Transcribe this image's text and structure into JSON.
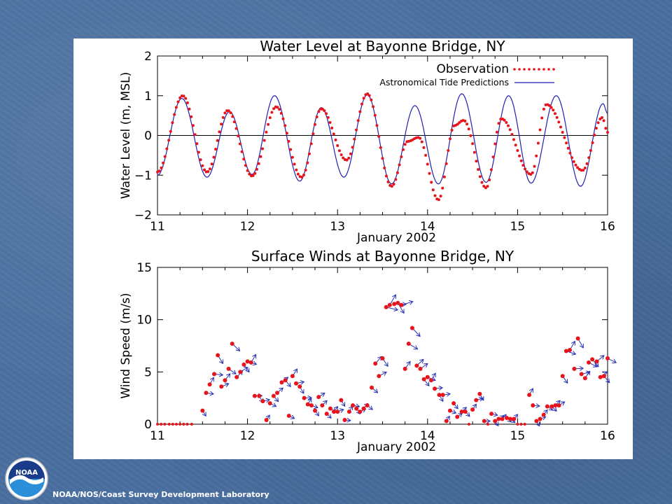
{
  "footer": {
    "credit": "NOAA/NOS/Coast Survey Development Laboratory",
    "logo_text": "NOAA"
  },
  "colors": {
    "observation": "#e8141c",
    "prediction": "#1f1fb4",
    "wind_arrow": "#2530b8",
    "background": "#4a6fa0"
  },
  "chart_data": [
    {
      "type": "line",
      "title": "Water Level at Bayonne Bridge, NY",
      "xlabel": "January 2002",
      "ylabel": "Water Level (m, MSL)",
      "xlim": [
        11,
        16
      ],
      "ylim": [
        -2,
        2
      ],
      "xticks": [
        "11",
        "12",
        "13",
        "14",
        "15",
        "16"
      ],
      "yticks": [
        "2",
        "1",
        "0",
        "−1",
        "−2"
      ],
      "zero_line": true,
      "legend": [
        {
          "label": "Observation",
          "style": "red dots",
          "color": "#e8141c"
        },
        {
          "label": "Astronomical Tide Predictions",
          "style": "blue line",
          "color": "#1f1fb4"
        }
      ],
      "series": [
        {
          "name": "Observation",
          "x": [
            11.0,
            11.28,
            11.55,
            11.78,
            12.05,
            12.32,
            12.6,
            12.82,
            13.1,
            13.33,
            13.6,
            13.78,
            13.9,
            14.12,
            14.3,
            14.4,
            14.65,
            14.82,
            15.15,
            15.32,
            15.72,
            15.94,
            16.0
          ],
          "y": [
            -0.92,
            1.0,
            -0.92,
            0.63,
            -1.02,
            0.72,
            -1.05,
            0.67,
            -0.62,
            1.05,
            -1.28,
            -0.15,
            -0.05,
            -1.62,
            0.25,
            0.38,
            -1.32,
            0.42,
            -0.98,
            0.78,
            -0.88,
            0.45,
            0.08
          ]
        },
        {
          "name": "Astronomical Tide Predictions",
          "x": [
            11.0,
            11.27,
            11.55,
            11.8,
            12.05,
            12.3,
            12.58,
            12.82,
            13.07,
            13.33,
            13.6,
            13.86,
            14.12,
            14.38,
            14.65,
            14.9,
            15.15,
            15.43,
            15.7,
            15.95,
            16.0
          ],
          "y": [
            -1.0,
            0.93,
            -1.05,
            0.6,
            -0.98,
            1.0,
            -1.15,
            0.7,
            -1.05,
            1.02,
            -1.22,
            0.75,
            -1.22,
            1.05,
            -1.18,
            1.0,
            -1.2,
            1.0,
            -1.28,
            0.8,
            0.55
          ]
        }
      ]
    },
    {
      "type": "scatter",
      "title": "Surface Winds at Bayonne Bridge, NY",
      "xlabel": "January 2002",
      "ylabel": "Wind Speed (m/s)",
      "xlim": [
        11,
        16
      ],
      "ylim": [
        0,
        15
      ],
      "xticks": [
        "11",
        "12",
        "13",
        "14",
        "15",
        "16"
      ],
      "yticks": [
        "15",
        "10",
        "5",
        "0"
      ],
      "series": [
        {
          "name": "Wind Speed",
          "x": [
            11.0,
            11.04,
            11.08,
            11.13,
            11.17,
            11.21,
            11.25,
            11.29,
            11.33,
            11.38,
            11.5,
            11.54,
            11.58,
            11.63,
            11.67,
            11.71,
            11.75,
            11.79,
            11.83,
            11.88,
            11.92,
            11.96,
            12.0,
            12.04,
            12.08,
            12.13,
            12.17,
            12.21,
            12.25,
            12.29,
            12.33,
            12.38,
            12.42,
            12.46,
            12.5,
            12.54,
            12.58,
            12.63,
            12.67,
            12.71,
            12.75,
            12.79,
            12.83,
            12.88,
            12.92,
            12.96,
            13.0,
            13.04,
            13.08,
            13.13,
            13.17,
            13.21,
            13.25,
            13.29,
            13.33,
            13.38,
            13.42,
            13.46,
            13.5,
            13.54,
            13.58,
            13.63,
            13.67,
            13.71,
            13.75,
            13.79,
            13.83,
            13.88,
            13.92,
            13.96,
            14.0,
            14.04,
            14.08,
            14.13,
            14.17,
            14.21,
            14.25,
            14.29,
            14.33,
            14.38,
            14.42,
            14.46,
            14.5,
            14.54,
            14.58,
            14.63,
            14.67,
            14.71,
            14.75,
            14.79,
            14.83,
            14.88,
            14.92,
            14.96,
            15.0,
            15.04,
            15.08,
            15.13,
            15.17,
            15.21,
            15.25,
            15.29,
            15.33,
            15.38,
            15.42,
            15.46,
            15.5,
            15.54,
            15.58,
            15.63,
            15.67,
            15.71,
            15.75,
            15.79,
            15.83,
            15.88,
            15.92,
            15.96,
            16.0
          ],
          "y": [
            0,
            0,
            0,
            0,
            0,
            0,
            0,
            0,
            0,
            0,
            1.3,
            3.0,
            3.8,
            4.8,
            6.6,
            3.6,
            4.2,
            5.3,
            7.7,
            4.5,
            5.0,
            5.7,
            6.0,
            5.9,
            2.7,
            2.7,
            2.2,
            0.4,
            2.0,
            2.7,
            3.0,
            4.0,
            4.2,
            0.8,
            4.6,
            3.9,
            3.6,
            2.5,
            1.9,
            1.8,
            1.3,
            2.6,
            1.8,
            1.0,
            1.5,
            1.2,
            1.2,
            2.3,
            0.4,
            1.2,
            1.8,
            1.5,
            1.2,
            1.5,
            1.8,
            3.5,
            5.8,
            4.6,
            6.3,
            11.2,
            11.4,
            11.5,
            11.6,
            11.4,
            5.3,
            7.7,
            9.2,
            5.6,
            5.3,
            4.3,
            4.5,
            4.2,
            3.4,
            2.8,
            2.8,
            0.3,
            1.3,
            2.0,
            0.7,
            1.2,
            1.2,
            0.0,
            1.4,
            2.3,
            2.9,
            0.3,
            0.0,
            1.0,
            0.3,
            0.5,
            0.5,
            0.6,
            0.5,
            0.5,
            0.0,
            0.0,
            0.0,
            2.8,
            1.8,
            0.3,
            0.5,
            0.9,
            1.7,
            1.7,
            1.8,
            1.8,
            4.6,
            7.0,
            7.1,
            5.3,
            8.2,
            4.8,
            4.4,
            5.9,
            6.2,
            6.0,
            4.5,
            4.6,
            6.3
          ]
        }
      ]
    }
  ]
}
